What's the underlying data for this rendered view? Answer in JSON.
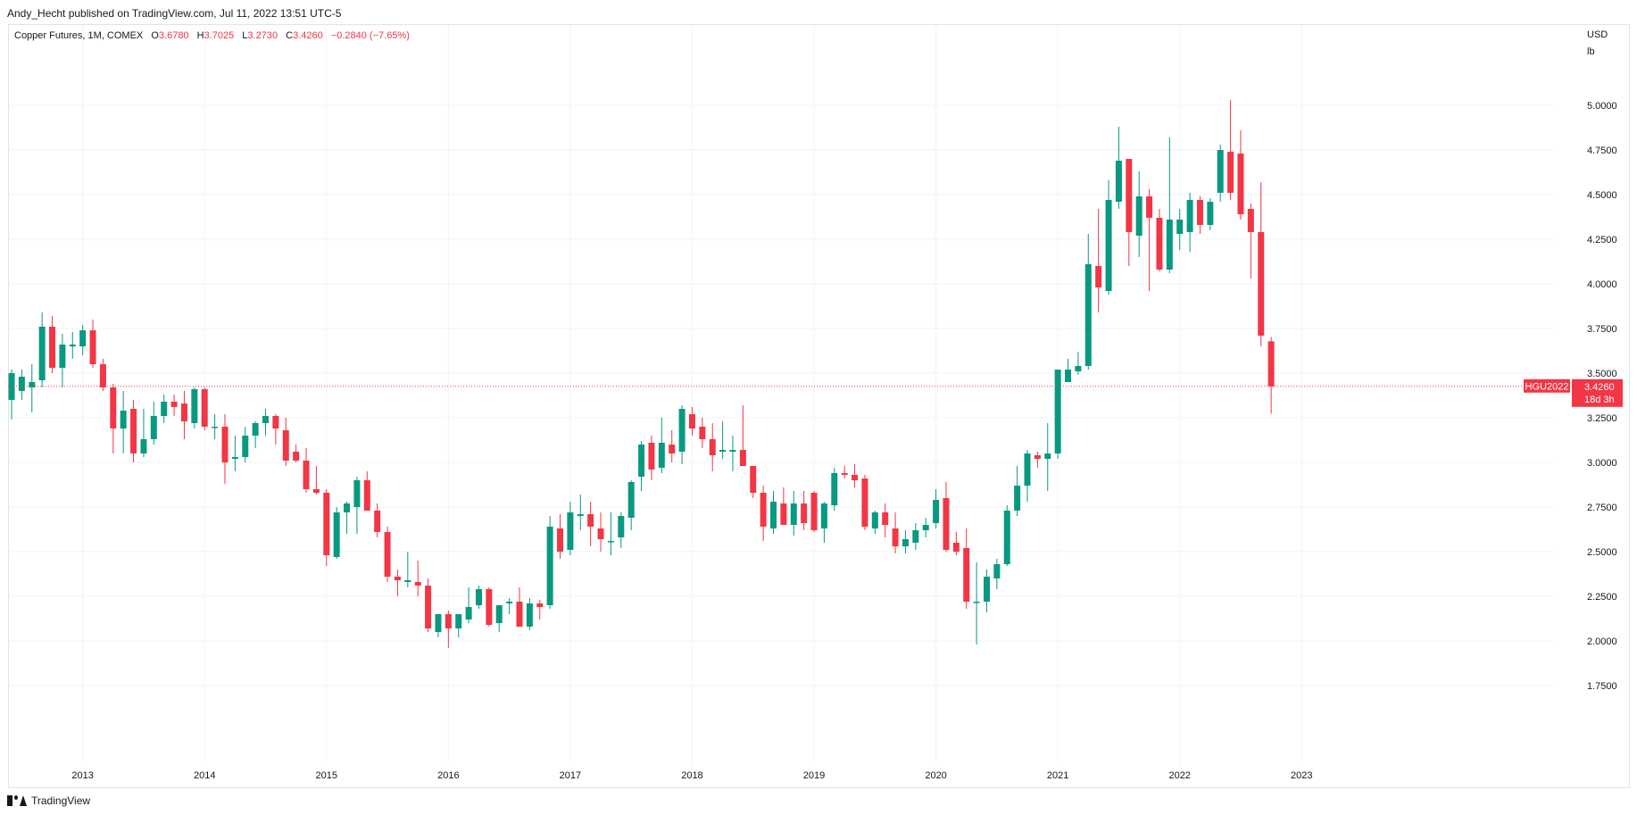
{
  "header": {
    "published": "Andy_Hecht published on TradingView.com, Jul 11, 2022 13:51 UTC-5"
  },
  "legend": {
    "symbol": "Copper Futures, 1M, COMEX",
    "o_label": "O",
    "o_value": "3.6780",
    "h_label": "H",
    "h_value": "3.7025",
    "l_label": "L",
    "l_value": "3.2730",
    "c_label": "C",
    "c_value": "3.4260",
    "change": "−0.2840 (−7.65%)"
  },
  "price_axis": {
    "unit_top": "USD",
    "unit_bottom": "lb"
  },
  "last_price": {
    "ticker": "HGU2022",
    "price": "3.4260",
    "countdown": "18d 3h"
  },
  "footer": {
    "brand": "TradingView"
  },
  "colors": {
    "up": "#089981",
    "down": "#f23645",
    "grid": "#f0f3fa",
    "text": "#131722"
  },
  "icons": {
    "brand_logo": "tradingview-logo-icon"
  },
  "chart_data": {
    "type": "candlestick",
    "interval": "1M",
    "price_ticks": [
      "1.7500",
      "2.0000",
      "2.2500",
      "2.5000",
      "2.7500",
      "3.0000",
      "3.2500",
      "3.5000",
      "3.7500",
      "4.0000",
      "4.2500",
      "4.5000",
      "4.7500",
      "5.0000"
    ],
    "ylim": [
      1.58,
      5.26
    ],
    "year_ticks": [
      "2013",
      "2014",
      "2015",
      "2016",
      "2017",
      "2018",
      "2019",
      "2020",
      "2021",
      "2022",
      "2023"
    ],
    "first_month": "2012-06",
    "candles": [
      {
        "o": 3.35,
        "h": 3.52,
        "l": 3.24,
        "c": 3.5
      },
      {
        "o": 3.4,
        "h": 3.52,
        "l": 3.35,
        "c": 3.48
      },
      {
        "o": 3.42,
        "h": 3.55,
        "l": 3.28,
        "c": 3.45
      },
      {
        "o": 3.46,
        "h": 3.84,
        "l": 3.42,
        "c": 3.76
      },
      {
        "o": 3.76,
        "h": 3.82,
        "l": 3.5,
        "c": 3.53
      },
      {
        "o": 3.53,
        "h": 3.72,
        "l": 3.42,
        "c": 3.66
      },
      {
        "o": 3.65,
        "h": 3.73,
        "l": 3.58,
        "c": 3.66
      },
      {
        "o": 3.65,
        "h": 3.77,
        "l": 3.6,
        "c": 3.74
      },
      {
        "o": 3.74,
        "h": 3.8,
        "l": 3.53,
        "c": 3.55
      },
      {
        "o": 3.55,
        "h": 3.58,
        "l": 3.4,
        "c": 3.42
      },
      {
        "o": 3.42,
        "h": 3.44,
        "l": 3.05,
        "c": 3.19
      },
      {
        "o": 3.19,
        "h": 3.4,
        "l": 3.05,
        "c": 3.29
      },
      {
        "o": 3.3,
        "h": 3.35,
        "l": 3.0,
        "c": 3.05
      },
      {
        "o": 3.05,
        "h": 3.3,
        "l": 3.03,
        "c": 3.13
      },
      {
        "o": 3.13,
        "h": 3.34,
        "l": 3.1,
        "c": 3.26
      },
      {
        "o": 3.26,
        "h": 3.38,
        "l": 3.22,
        "c": 3.34
      },
      {
        "o": 3.34,
        "h": 3.38,
        "l": 3.26,
        "c": 3.31
      },
      {
        "o": 3.33,
        "h": 3.4,
        "l": 3.13,
        "c": 3.23
      },
      {
        "o": 3.22,
        "h": 3.42,
        "l": 3.19,
        "c": 3.41
      },
      {
        "o": 3.41,
        "h": 3.42,
        "l": 3.18,
        "c": 3.2
      },
      {
        "o": 3.2,
        "h": 3.27,
        "l": 3.13,
        "c": 3.2
      },
      {
        "o": 3.2,
        "h": 3.27,
        "l": 2.88,
        "c": 3.0
      },
      {
        "o": 3.02,
        "h": 3.15,
        "l": 2.95,
        "c": 3.03
      },
      {
        "o": 3.03,
        "h": 3.2,
        "l": 3.0,
        "c": 3.15
      },
      {
        "o": 3.15,
        "h": 3.23,
        "l": 3.08,
        "c": 3.22
      },
      {
        "o": 3.22,
        "h": 3.3,
        "l": 3.15,
        "c": 3.26
      },
      {
        "o": 3.26,
        "h": 3.27,
        "l": 3.1,
        "c": 3.19
      },
      {
        "o": 3.18,
        "h": 3.25,
        "l": 2.98,
        "c": 3.01
      },
      {
        "o": 3.06,
        "h": 3.1,
        "l": 3.0,
        "c": 3.01
      },
      {
        "o": 3.01,
        "h": 3.08,
        "l": 2.83,
        "c": 2.85
      },
      {
        "o": 2.85,
        "h": 2.98,
        "l": 2.82,
        "c": 2.83
      },
      {
        "o": 2.83,
        "h": 2.85,
        "l": 2.42,
        "c": 2.48
      },
      {
        "o": 2.47,
        "h": 2.75,
        "l": 2.46,
        "c": 2.72
      },
      {
        "o": 2.72,
        "h": 2.78,
        "l": 2.6,
        "c": 2.77
      },
      {
        "o": 2.75,
        "h": 2.92,
        "l": 2.6,
        "c": 2.9
      },
      {
        "o": 2.9,
        "h": 2.95,
        "l": 2.75,
        "c": 2.73
      },
      {
        "o": 2.73,
        "h": 2.77,
        "l": 2.58,
        "c": 2.61
      },
      {
        "o": 2.61,
        "h": 2.64,
        "l": 2.33,
        "c": 2.36
      },
      {
        "o": 2.36,
        "h": 2.4,
        "l": 2.25,
        "c": 2.34
      },
      {
        "o": 2.33,
        "h": 2.5,
        "l": 2.3,
        "c": 2.34
      },
      {
        "o": 2.33,
        "h": 2.45,
        "l": 2.25,
        "c": 2.31
      },
      {
        "o": 2.31,
        "h": 2.35,
        "l": 2.05,
        "c": 2.07
      },
      {
        "o": 2.05,
        "h": 2.15,
        "l": 2.02,
        "c": 2.15
      },
      {
        "o": 2.15,
        "h": 2.17,
        "l": 1.96,
        "c": 2.07
      },
      {
        "o": 2.07,
        "h": 2.15,
        "l": 2.02,
        "c": 2.15
      },
      {
        "o": 2.12,
        "h": 2.3,
        "l": 2.1,
        "c": 2.19
      },
      {
        "o": 2.2,
        "h": 2.31,
        "l": 2.18,
        "c": 2.29
      },
      {
        "o": 2.29,
        "h": 2.3,
        "l": 2.08,
        "c": 2.09
      },
      {
        "o": 2.1,
        "h": 2.2,
        "l": 2.05,
        "c": 2.2
      },
      {
        "o": 2.21,
        "h": 2.24,
        "l": 2.15,
        "c": 2.22
      },
      {
        "o": 2.22,
        "h": 2.3,
        "l": 2.09,
        "c": 2.08
      },
      {
        "o": 2.08,
        "h": 2.24,
        "l": 2.06,
        "c": 2.21
      },
      {
        "o": 2.21,
        "h": 2.23,
        "l": 2.12,
        "c": 2.19
      },
      {
        "o": 2.2,
        "h": 2.7,
        "l": 2.18,
        "c": 2.64
      },
      {
        "o": 2.63,
        "h": 2.71,
        "l": 2.46,
        "c": 2.5
      },
      {
        "o": 2.51,
        "h": 2.78,
        "l": 2.48,
        "c": 2.72
      },
      {
        "o": 2.7,
        "h": 2.82,
        "l": 2.62,
        "c": 2.71
      },
      {
        "o": 2.71,
        "h": 2.78,
        "l": 2.53,
        "c": 2.64
      },
      {
        "o": 2.63,
        "h": 2.72,
        "l": 2.5,
        "c": 2.57
      },
      {
        "o": 2.56,
        "h": 2.72,
        "l": 2.48,
        "c": 2.56
      },
      {
        "o": 2.58,
        "h": 2.72,
        "l": 2.52,
        "c": 2.7
      },
      {
        "o": 2.69,
        "h": 2.9,
        "l": 2.62,
        "c": 2.89
      },
      {
        "o": 2.92,
        "h": 3.12,
        "l": 2.84,
        "c": 3.1
      },
      {
        "o": 3.11,
        "h": 3.15,
        "l": 2.9,
        "c": 2.96
      },
      {
        "o": 2.97,
        "h": 3.25,
        "l": 2.94,
        "c": 3.11
      },
      {
        "o": 3.1,
        "h": 3.18,
        "l": 3.0,
        "c": 3.05
      },
      {
        "o": 3.06,
        "h": 3.32,
        "l": 2.99,
        "c": 3.3
      },
      {
        "o": 3.27,
        "h": 3.31,
        "l": 3.15,
        "c": 3.19
      },
      {
        "o": 3.2,
        "h": 3.25,
        "l": 3.08,
        "c": 3.13
      },
      {
        "o": 3.13,
        "h": 3.22,
        "l": 2.95,
        "c": 3.04
      },
      {
        "o": 3.06,
        "h": 3.23,
        "l": 3.02,
        "c": 3.07
      },
      {
        "o": 3.06,
        "h": 3.15,
        "l": 2.95,
        "c": 3.07
      },
      {
        "o": 3.07,
        "h": 3.32,
        "l": 2.99,
        "c": 2.98
      },
      {
        "o": 2.98,
        "h": 2.98,
        "l": 2.8,
        "c": 2.83
      },
      {
        "o": 2.83,
        "h": 2.87,
        "l": 2.56,
        "c": 2.64
      },
      {
        "o": 2.63,
        "h": 2.84,
        "l": 2.6,
        "c": 2.78
      },
      {
        "o": 2.77,
        "h": 2.86,
        "l": 2.66,
        "c": 2.65
      },
      {
        "o": 2.65,
        "h": 2.84,
        "l": 2.59,
        "c": 2.77
      },
      {
        "o": 2.77,
        "h": 2.84,
        "l": 2.62,
        "c": 2.66
      },
      {
        "o": 2.83,
        "h": 2.84,
        "l": 2.61,
        "c": 2.62
      },
      {
        "o": 2.63,
        "h": 2.78,
        "l": 2.55,
        "c": 2.77
      },
      {
        "o": 2.76,
        "h": 2.97,
        "l": 2.73,
        "c": 2.94
      },
      {
        "o": 2.94,
        "h": 2.98,
        "l": 2.91,
        "c": 2.93
      },
      {
        "o": 2.93,
        "h": 2.99,
        "l": 2.86,
        "c": 2.9
      },
      {
        "o": 2.91,
        "h": 2.93,
        "l": 2.62,
        "c": 2.64
      },
      {
        "o": 2.63,
        "h": 2.73,
        "l": 2.6,
        "c": 2.72
      },
      {
        "o": 2.72,
        "h": 2.77,
        "l": 2.58,
        "c": 2.65
      },
      {
        "o": 2.63,
        "h": 2.72,
        "l": 2.49,
        "c": 2.53
      },
      {
        "o": 2.53,
        "h": 2.62,
        "l": 2.49,
        "c": 2.57
      },
      {
        "o": 2.55,
        "h": 2.66,
        "l": 2.51,
        "c": 2.62
      },
      {
        "o": 2.62,
        "h": 2.69,
        "l": 2.58,
        "c": 2.65
      },
      {
        "o": 2.66,
        "h": 2.85,
        "l": 2.63,
        "c": 2.79
      },
      {
        "o": 2.8,
        "h": 2.89,
        "l": 2.5,
        "c": 2.51
      },
      {
        "o": 2.55,
        "h": 2.61,
        "l": 2.48,
        "c": 2.5
      },
      {
        "o": 2.52,
        "h": 2.63,
        "l": 2.18,
        "c": 2.22
      },
      {
        "o": 2.22,
        "h": 2.44,
        "l": 1.98,
        "c": 2.22
      },
      {
        "o": 2.22,
        "h": 2.4,
        "l": 2.16,
        "c": 2.36
      },
      {
        "o": 2.35,
        "h": 2.46,
        "l": 2.29,
        "c": 2.43
      },
      {
        "o": 2.43,
        "h": 2.76,
        "l": 2.42,
        "c": 2.73
      },
      {
        "o": 2.73,
        "h": 2.98,
        "l": 2.7,
        "c": 2.87
      },
      {
        "o": 2.87,
        "h": 3.07,
        "l": 2.78,
        "c": 3.05
      },
      {
        "o": 3.04,
        "h": 3.06,
        "l": 2.97,
        "c": 3.02
      },
      {
        "o": 3.02,
        "h": 3.22,
        "l": 2.84,
        "c": 3.05
      },
      {
        "o": 3.05,
        "h": 3.5,
        "l": 3.02,
        "c": 3.52
      },
      {
        "o": 3.45,
        "h": 3.58,
        "l": 3.45,
        "c": 3.52
      },
      {
        "o": 3.51,
        "h": 3.62,
        "l": 3.49,
        "c": 3.54
      },
      {
        "o": 3.54,
        "h": 4.28,
        "l": 3.52,
        "c": 4.11
      },
      {
        "o": 4.1,
        "h": 4.42,
        "l": 3.84,
        "c": 3.98
      },
      {
        "o": 3.96,
        "h": 4.58,
        "l": 3.94,
        "c": 4.47
      },
      {
        "o": 4.46,
        "h": 4.88,
        "l": 4.42,
        "c": 4.69
      },
      {
        "o": 4.7,
        "h": 4.7,
        "l": 4.1,
        "c": 4.29
      },
      {
        "o": 4.27,
        "h": 4.63,
        "l": 4.15,
        "c": 4.49
      },
      {
        "o": 4.49,
        "h": 4.53,
        "l": 3.96,
        "c": 4.37
      },
      {
        "o": 4.37,
        "h": 4.42,
        "l": 4.07,
        "c": 4.08
      },
      {
        "o": 4.08,
        "h": 4.82,
        "l": 4.06,
        "c": 4.36
      },
      {
        "o": 4.28,
        "h": 4.42,
        "l": 4.19,
        "c": 4.36
      },
      {
        "o": 4.29,
        "h": 4.51,
        "l": 4.18,
        "c": 4.47
      },
      {
        "o": 4.47,
        "h": 4.49,
        "l": 4.28,
        "c": 4.33
      },
      {
        "o": 4.33,
        "h": 4.48,
        "l": 4.3,
        "c": 4.46
      },
      {
        "o": 4.51,
        "h": 4.78,
        "l": 4.46,
        "c": 4.75
      },
      {
        "o": 4.74,
        "h": 5.03,
        "l": 4.47,
        "c": 4.51
      },
      {
        "o": 4.73,
        "h": 4.86,
        "l": 4.36,
        "c": 4.39
      },
      {
        "o": 4.42,
        "h": 4.45,
        "l": 4.03,
        "c": 4.29
      },
      {
        "o": 4.29,
        "h": 4.57,
        "l": 3.65,
        "c": 3.71
      },
      {
        "o": 3.678,
        "h": 3.7025,
        "l": 3.273,
        "c": 3.426
      }
    ]
  }
}
